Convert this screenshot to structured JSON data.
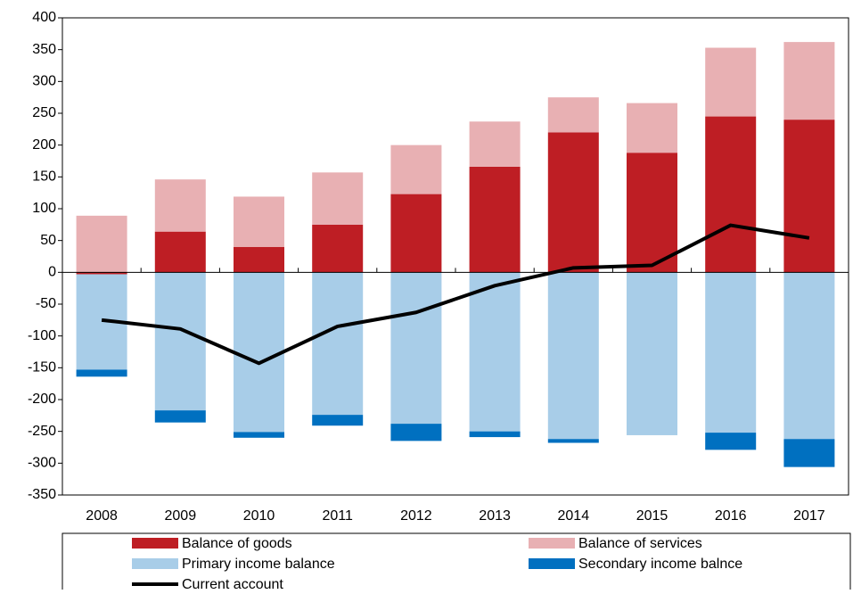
{
  "chart_data": {
    "type": "bar",
    "stacked": true,
    "categories": [
      "2008",
      "2009",
      "2010",
      "2011",
      "2012",
      "2013",
      "2014",
      "2015",
      "2016",
      "2017"
    ],
    "series": [
      {
        "name": "Balance of goods",
        "color": "#be1e24",
        "values": [
          -3,
          64,
          40,
          75,
          123,
          166,
          220,
          188,
          245,
          240
        ]
      },
      {
        "name": "Balance of services",
        "color": "#e8b0b3",
        "values": [
          89,
          82,
          79,
          82,
          77,
          71,
          55,
          78,
          108,
          122
        ]
      },
      {
        "name": "Primary income balance",
        "color": "#a8cde8",
        "values": [
          -150,
          -217,
          -251,
          -224,
          -238,
          -250,
          -262,
          -256,
          -252,
          -262
        ]
      },
      {
        "name": "Secondary income balnce",
        "color": "#0070c0",
        "values": [
          -11,
          -19,
          -9,
          -17,
          -27,
          -9,
          -6,
          0,
          -27,
          -44
        ]
      },
      {
        "name": "Current account",
        "color": "#000000",
        "type": "line",
        "values": [
          -75,
          -89,
          -143,
          -85,
          -63,
          -21,
          7,
          11,
          74,
          54
        ]
      }
    ],
    "ylim": [
      -350,
      400
    ],
    "yticks": [
      -350,
      -300,
      -250,
      -200,
      -150,
      -100,
      -50,
      0,
      50,
      100,
      150,
      200,
      250,
      300,
      350,
      400
    ],
    "grid": false,
    "legend": "bottom"
  }
}
